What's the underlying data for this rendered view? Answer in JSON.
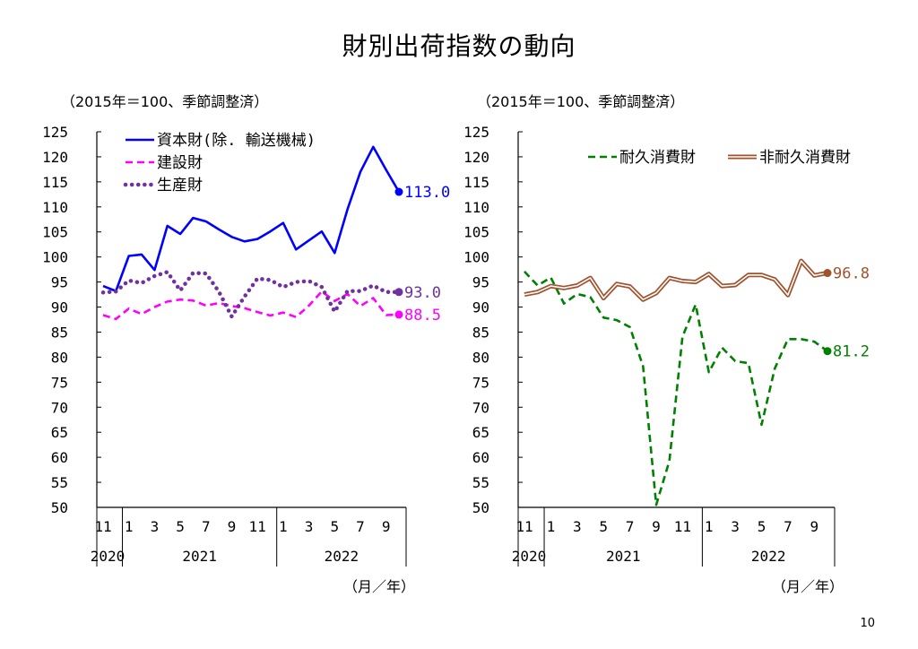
{
  "title": "財別出荷指数の動向",
  "page_number": "10",
  "chart_data": [
    {
      "type": "line",
      "unit_note": "（2015年＝100、季節調整済）",
      "x_unit": "（月／年）",
      "ylim": [
        50,
        125
      ],
      "yticks": [
        125,
        120,
        115,
        110,
        105,
        100,
        95,
        90,
        85,
        80,
        75,
        70,
        65,
        60,
        55,
        50
      ],
      "month_labels": [
        "11",
        "1",
        "3",
        "5",
        "7",
        "9",
        "11",
        "1",
        "3",
        "5",
        "7",
        "9"
      ],
      "year_labels": [
        "2020",
        "2021",
        "2022"
      ],
      "x": [
        "2020-11",
        "2020-12",
        "2021-01",
        "2021-02",
        "2021-03",
        "2021-04",
        "2021-05",
        "2021-06",
        "2021-07",
        "2021-08",
        "2021-09",
        "2021-10",
        "2021-11",
        "2021-12",
        "2022-01",
        "2022-02",
        "2022-03",
        "2022-04",
        "2022-05",
        "2022-06",
        "2022-07",
        "2022-08",
        "2022-09",
        "2022-10"
      ],
      "series": [
        {
          "name": "資本財(除. 輸送機械)",
          "color": "#0000ff",
          "style": "solid",
          "values": [
            94.2,
            93.2,
            100.2,
            100.5,
            97.4,
            106.2,
            104.6,
            107.8,
            107.1,
            105.5,
            104.0,
            103.1,
            103.6,
            105.1,
            106.8,
            101.5,
            103.3,
            105.1,
            100.8,
            109.5,
            117.0,
            122.0,
            117.4,
            113.0
          ],
          "end_label": "113.0"
        },
        {
          "name": "建設財",
          "color": "#ff00ff",
          "style": "dash",
          "values": [
            88.4,
            87.6,
            89.7,
            88.6,
            90.0,
            91.1,
            91.5,
            91.3,
            90.3,
            90.8,
            90.2,
            89.8,
            89.0,
            88.3,
            88.9,
            88.0,
            90.3,
            93.1,
            91.2,
            92.6,
            90.2,
            91.8,
            88.4,
            88.5
          ],
          "end_label": "88.5"
        },
        {
          "name": "生産財",
          "color": "#7030a0",
          "style": "dot",
          "values": [
            92.9,
            93.1,
            95.3,
            94.8,
            96.2,
            97.0,
            93.3,
            96.8,
            96.7,
            93.1,
            88.1,
            92.1,
            95.7,
            95.4,
            94.0,
            95.0,
            95.2,
            94.0,
            89.1,
            93.2,
            93.2,
            94.3,
            93.0,
            93.0
          ],
          "end_label": "93.0"
        }
      ]
    },
    {
      "type": "line",
      "unit_note": "（2015年＝100、季節調整済）",
      "x_unit": "（月／年）",
      "ylim": [
        50,
        125
      ],
      "yticks": [
        125,
        120,
        115,
        110,
        105,
        100,
        95,
        90,
        85,
        80,
        75,
        70,
        65,
        60,
        55,
        50
      ],
      "month_labels": [
        "11",
        "1",
        "3",
        "5",
        "7",
        "9",
        "11",
        "1",
        "3",
        "5",
        "7",
        "9"
      ],
      "year_labels": [
        "2020",
        "2021",
        "2022"
      ],
      "x": [
        "2020-11",
        "2020-12",
        "2021-01",
        "2021-02",
        "2021-03",
        "2021-04",
        "2021-05",
        "2021-06",
        "2021-07",
        "2021-08",
        "2021-09",
        "2021-10",
        "2021-11",
        "2021-12",
        "2022-01",
        "2022-02",
        "2022-03",
        "2022-04",
        "2022-05",
        "2022-06",
        "2022-07",
        "2022-08",
        "2022-09",
        "2022-10"
      ],
      "series": [
        {
          "name": "耐久消費財",
          "color": "#008000",
          "style": "dash",
          "values": [
            97.1,
            94.3,
            95.9,
            90.7,
            92.6,
            92.0,
            87.9,
            87.4,
            86.0,
            78.2,
            50.5,
            59.3,
            84.1,
            90.5,
            77.0,
            81.9,
            79.2,
            78.8,
            66.5,
            77.7,
            83.6,
            83.6,
            83.1,
            81.2
          ],
          "end_label": "81.2"
        },
        {
          "name": "非耐久消費財",
          "color": "#a0522d",
          "style": "double",
          "values": [
            92.5,
            93.0,
            94.2,
            93.8,
            94.3,
            95.8,
            91.8,
            94.6,
            94.1,
            91.5,
            92.8,
            95.8,
            95.2,
            95.0,
            96.6,
            94.2,
            94.4,
            96.4,
            96.4,
            95.5,
            92.4,
            99.2,
            96.3,
            96.8
          ],
          "end_label": "96.8"
        }
      ]
    }
  ]
}
